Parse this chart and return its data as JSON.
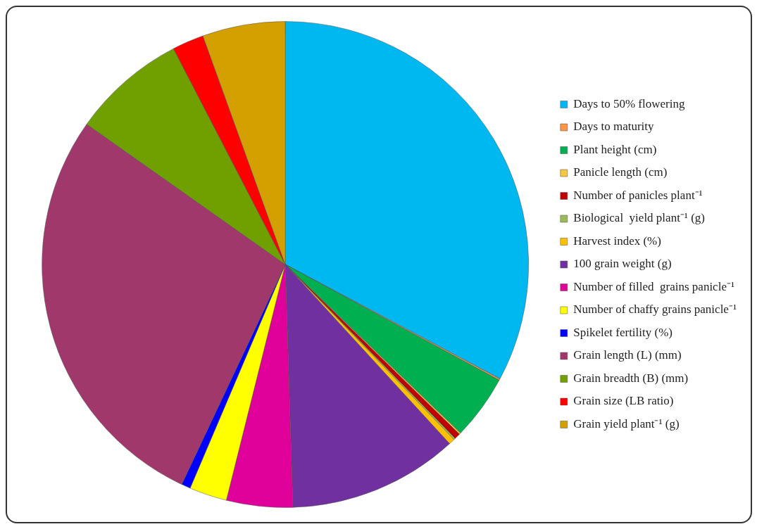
{
  "chart_data": {
    "type": "pie",
    "legend": "right",
    "categories": [
      "Days to 50% flowering",
      "Days to maturity",
      "Plant height (cm)",
      "Panicle length (cm)",
      "Number of panicles plant⁻¹",
      "Biological  yield plant⁻¹ (g)",
      "Harvest index (%)",
      "100 grain weight (g)",
      "Number of filled  grains panicle⁻¹",
      "Number of chaffy grains panicle⁻¹",
      "Spikelet fertility (%)",
      "Grain length (L) (mm)",
      "Grain breadth (B) (mm)",
      "Grain size (LB ratio)",
      "Grain yield plant⁻¹ (g)"
    ],
    "values": [
      32.8,
      0.1,
      4.3,
      0.1,
      0.4,
      0.1,
      0.4,
      11.3,
      4.4,
      2.5,
      0.6,
      27.8,
      7.6,
      2.1,
      5.5
    ],
    "colors": [
      "#00b8f0",
      "#f79646",
      "#00b050",
      "#f5c842",
      "#c00000",
      "#9bbb59",
      "#ffc000",
      "#7030a0",
      "#e0009a",
      "#ffff00",
      "#0000ff",
      "#a0386c",
      "#70a000",
      "#ff0000",
      "#d4a000"
    ]
  }
}
